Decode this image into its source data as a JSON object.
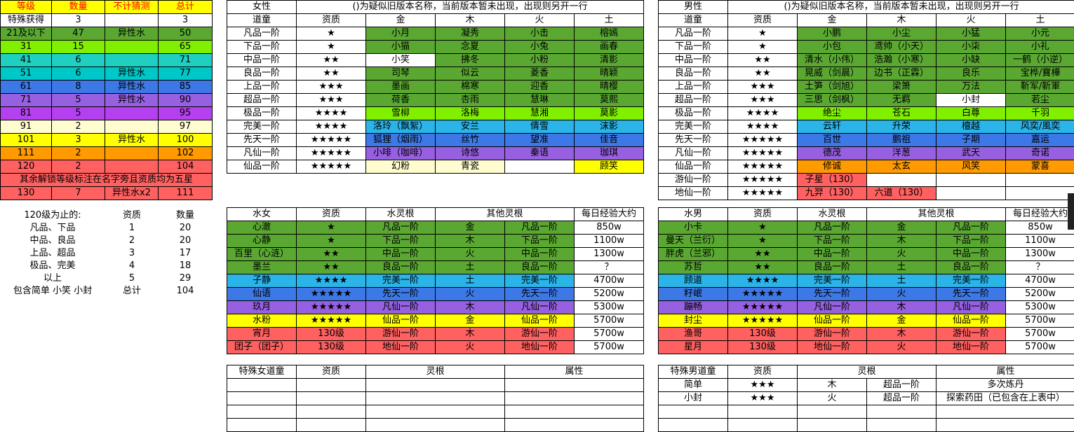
{
  "level_table": {
    "headers": [
      "等级",
      "数量",
      "不计猜测",
      "总计"
    ],
    "rows": [
      [
        "特殊获得",
        "3",
        "",
        "3"
      ],
      [
        "21及以下",
        "47",
        "异性水",
        "50"
      ],
      [
        "31",
        "15",
        "",
        "65"
      ],
      [
        "41",
        "6",
        "",
        "71"
      ],
      [
        "51",
        "6",
        "异性水",
        "77"
      ],
      [
        "61",
        "8",
        "异性水",
        "85"
      ],
      [
        "71",
        "5",
        "异性水",
        "90"
      ],
      [
        "81",
        "5",
        "",
        "95"
      ],
      [
        "91",
        "2",
        "",
        "97"
      ],
      [
        "101",
        "3",
        "异性水",
        "100"
      ],
      [
        "111",
        "2",
        "",
        "102"
      ],
      [
        "120",
        "2",
        "",
        "104"
      ]
    ],
    "note": "其余解锁等级标注在名字旁且资质均为五星",
    "last_row": [
      "130",
      "7",
      "异性水x2",
      "111"
    ]
  },
  "summary": {
    "headers": [
      "120级为止的:",
      "资质",
      "数量"
    ],
    "rows": [
      [
        "凡品、下品",
        "1",
        "20"
      ],
      [
        "中品、良品",
        "2",
        "20"
      ],
      [
        "上品、超品",
        "3",
        "17"
      ],
      [
        "极品、完美",
        "4",
        "18"
      ],
      [
        "以上",
        "5",
        "29"
      ],
      [
        "包含简单 小笑 小封",
        "总计",
        "104"
      ]
    ]
  },
  "female_table": {
    "title": "女性",
    "note": "()为疑似旧版本名称，当前版本暂未出现，出现则另开一行",
    "headers": [
      "道童",
      "资质",
      "金",
      "木",
      "火",
      "土"
    ],
    "rows": [
      [
        "凡品一阶",
        "★",
        "小月",
        "凝秀",
        "小击",
        "榕嫣"
      ],
      [
        "下品一阶",
        "★",
        "小猫",
        "念夏",
        "小兔",
        "画春"
      ],
      [
        "中品一阶",
        "★★",
        "小笑",
        "拂冬",
        "小粉",
        "清影"
      ],
      [
        "良品一阶",
        "★★",
        "司琴",
        "似云",
        "菱香",
        "晴颖"
      ],
      [
        "上品一阶",
        "★★★",
        "墨画",
        "棉寒",
        "迎香",
        "晴樱"
      ],
      [
        "超品一阶",
        "★★★",
        "荷香",
        "杏雨",
        "慧琳",
        "莫熙"
      ],
      [
        "极品一阶",
        "★★★★",
        "雪柳",
        "洛梅",
        "慧湘",
        "莫影"
      ],
      [
        "完美一阶",
        "★★★★",
        "洛玲（飘絮）",
        "安兰",
        "倩雪",
        "沫影"
      ],
      [
        "先天一阶",
        "★★★★★",
        "狐狸（烟雨）",
        "丝竹",
        "望准",
        "佳音"
      ],
      [
        "凡仙一阶",
        "★★★★★",
        "小啡（咖啡）",
        "诗悠",
        "秦语",
        "珈琪"
      ],
      [
        "仙品一阶",
        "★★★★★",
        "幻粉",
        "青瓷",
        "",
        "顾笑"
      ]
    ]
  },
  "male_table": {
    "title": "男性",
    "note": "()为疑似旧版本名称，当前版本暂未出现，出现则另开一行",
    "headers": [
      "道童",
      "资质",
      "金",
      "木",
      "火",
      "土"
    ],
    "rows": [
      [
        "凡品一阶",
        "★",
        "小鹏",
        "小尘",
        "小猛",
        "小元"
      ],
      [
        "下品一阶",
        "★",
        "小包",
        "鸢帅（小天）",
        "小柒",
        "小礼"
      ],
      [
        "中品一阶",
        "★★",
        "清水（小伟）",
        "浩瀚（小寒）",
        "小缺",
        "一鹤（小逆）"
      ],
      [
        "良品一阶",
        "★★",
        "晃威（剑晨）",
        "边书（正霖）",
        "良乐",
        "宝桦/寶樺"
      ],
      [
        "上品一阶",
        "★★★",
        "土笋（剑旭）",
        "梁箫",
        "万法",
        "靳军/靳軍"
      ],
      [
        "超品一阶",
        "★★★",
        "三思（剑枫）",
        "无羁",
        "小封",
        "若尘"
      ],
      [
        "极品一阶",
        "★★★★",
        "绝尘",
        "苍石",
        "白尊",
        "千羽"
      ],
      [
        "完美一阶",
        "★★★★",
        "云轩",
        "升荣",
        "檀越",
        "风奕/風奕"
      ],
      [
        "先天一阶",
        "★★★★★",
        "百世",
        "鹏祖",
        "子期",
        "嘉运"
      ],
      [
        "凡仙一阶",
        "★★★★★",
        "德茂",
        "洋葱",
        "武天",
        "奇诺"
      ],
      [
        "仙品一阶",
        "★★★★★",
        "修诚",
        "太玄",
        "风笑",
        "蒙喜"
      ],
      [
        "游仙一阶",
        "★★★★★",
        "子星（130）",
        "",
        "",
        ""
      ],
      [
        "地仙一阶",
        "★★★★★",
        "九羿（130）",
        "六道（130）",
        "",
        ""
      ]
    ]
  },
  "water_female": {
    "headers": [
      "水女",
      "资质",
      "水灵根",
      "其他灵根",
      "",
      "每日经验大约"
    ],
    "rows": [
      [
        "心澈",
        "★",
        "凡品一阶",
        "金",
        "凡品一阶",
        "850w"
      ],
      [
        "心静",
        "★",
        "下品一阶",
        "木",
        "下品一阶",
        "1100w"
      ],
      [
        "百里（心涟）",
        "★★",
        "中品一阶",
        "火",
        "中品一阶",
        "1300w"
      ],
      [
        "墨兰",
        "★★",
        "良品一阶",
        "土",
        "良品一阶",
        "？"
      ],
      [
        "子静",
        "★★★★",
        "完美一阶",
        "土",
        "完美一阶",
        "4700w"
      ],
      [
        "仙语",
        "★★★★★",
        "先天一阶",
        "火",
        "先天一阶",
        "5200w"
      ],
      [
        "玖月",
        "★★★★★",
        "凡仙一阶",
        "木",
        "凡仙一阶",
        "5300w"
      ],
      [
        "水粉",
        "★★★★★",
        "仙品一阶",
        "金",
        "仙品一阶",
        "5700w"
      ],
      [
        "宵月",
        "130级",
        "游仙一阶",
        "木",
        "游仙一阶",
        "5700w"
      ],
      [
        "团子（团子）",
        "130级",
        "地仙一阶",
        "火",
        "地仙一阶",
        "5700w"
      ]
    ]
  },
  "water_male": {
    "headers": [
      "水男",
      "资质",
      "水灵根",
      "其他灵根",
      "",
      "每日经验大约"
    ],
    "rows": [
      [
        "小卡",
        "★",
        "凡品一阶",
        "金",
        "凡品一阶",
        "850w"
      ],
      [
        "曼天（兰衍）",
        "★",
        "下品一阶",
        "木",
        "下品一阶",
        "1100w"
      ],
      [
        "胖虎（兰邪）",
        "★★",
        "中品一阶",
        "火",
        "中品一阶",
        "1300w"
      ],
      [
        "苏哲",
        "★★",
        "良品一阶",
        "土",
        "良品一阶",
        "？"
      ],
      [
        "顾道",
        "★★★★",
        "完美一阶",
        "土",
        "完美一阶",
        "4700w"
      ],
      [
        "籽岷",
        "★★★★★",
        "先天一阶",
        "火",
        "先天一阶",
        "5200w"
      ],
      [
        "蹦畅",
        "★★★★★",
        "凡仙一阶",
        "木",
        "凡仙一阶",
        "5300w"
      ],
      [
        "封尘",
        "★★★★★",
        "仙品一阶",
        "金",
        "仙品一阶",
        "5700w"
      ],
      [
        "渔哥",
        "130级",
        "游仙一阶",
        "木",
        "游仙一阶",
        "5700w"
      ],
      [
        "星月",
        "130级",
        "地仙一阶",
        "火",
        "地仙一阶",
        "5700w"
      ]
    ]
  },
  "special_female": {
    "headers": [
      "特殊女道童",
      "资质",
      "灵根",
      "属性"
    ]
  },
  "special_male": {
    "headers": [
      "特殊男道童",
      "资质",
      "灵根",
      "属性"
    ],
    "rows": [
      [
        "简单",
        "★★★",
        "木",
        "超品一阶",
        "多次炼丹"
      ],
      [
        "小封",
        "★★★",
        "火",
        "超品一阶",
        "探索药田（已包含在上表中）"
      ]
    ]
  },
  "colors": {
    "green": "#5aa832",
    "lime": "#80f000",
    "cyan": "#1fd0c0",
    "blue": "#3c78e6",
    "purple": "#9660e0",
    "violet": "#b540f0",
    "yellow": "#ffff00",
    "orange": "#ff9a00",
    "salmon": "#ff6060",
    "cream": "#fffdd0"
  }
}
